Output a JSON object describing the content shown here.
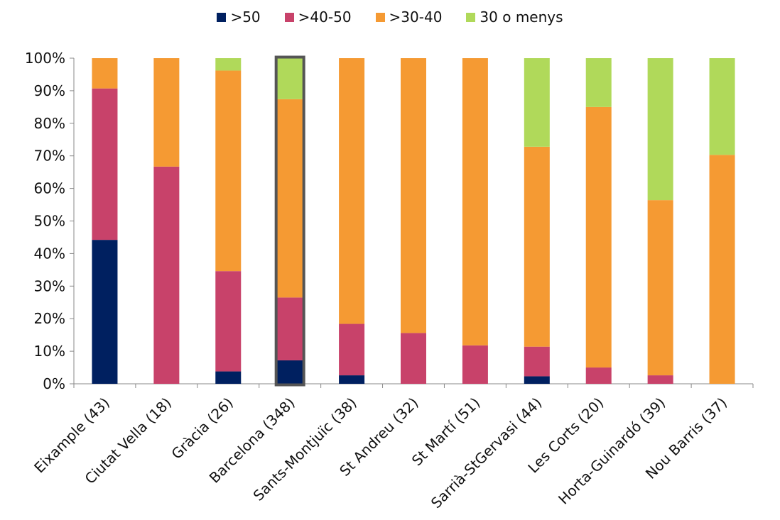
{
  "chart_data": {
    "type": "bar",
    "stacked": true,
    "percent": true,
    "categories": [
      "Eixample (43)",
      "Ciutat Vella (18)",
      "Gràcia (26)",
      "Barcelona (348)",
      "Sants-Montjuïc (38)",
      "St Andreu (32)",
      "St Martí (51)",
      "Sarrià-StGervasi (44)",
      "Les Corts (20)",
      "Horta-Guinardó (39)",
      "Nou Barris (37)"
    ],
    "highlighted_category": "Barcelona (348)",
    "series": [
      {
        "name": ">50",
        "color": "#002060",
        "values": [
          44.2,
          0,
          3.8,
          7.2,
          2.6,
          0,
          0,
          2.3,
          0,
          0,
          0
        ]
      },
      {
        "name": ">40-50",
        "color": "#C8426A",
        "values": [
          46.5,
          66.7,
          30.8,
          19.3,
          15.8,
          15.6,
          11.8,
          9.1,
          5.0,
          2.6,
          0
        ]
      },
      {
        "name": ">30-40",
        "color": "#F59A33",
        "values": [
          9.3,
          33.3,
          61.6,
          60.9,
          81.6,
          84.4,
          88.2,
          61.4,
          80.0,
          53.8,
          70.3
        ]
      },
      {
        "name": "30 o menys",
        "color": "#B0D95A",
        "values": [
          0,
          0,
          3.8,
          12.6,
          0,
          0,
          0,
          27.2,
          15.0,
          43.6,
          29.7
        ]
      }
    ],
    "ylim": [
      0,
      100
    ],
    "yticks": [
      "0%",
      "10%",
      "20%",
      "30%",
      "40%",
      "50%",
      "60%",
      "70%",
      "80%",
      "90%",
      "100%"
    ],
    "grid": false,
    "legend_position": "top-center"
  }
}
